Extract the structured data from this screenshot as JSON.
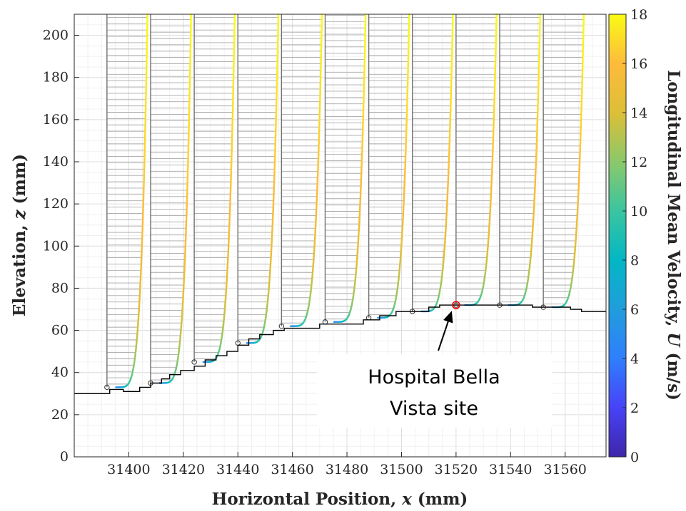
{
  "chart_data": {
    "type": "line",
    "xlabel_main": "Horizontal Position, ",
    "xlabel_var": "x",
    "xlabel_unit": " (mm)",
    "ylabel_main": "Elevation, ",
    "ylabel_var": "z",
    "ylabel_unit": " (mm)",
    "colorbar_label_main": "Longitudinal Mean Velocity, ",
    "colorbar_label_var": "U",
    "colorbar_label_unit": " (m/s)",
    "xlim": [
      31380,
      31575
    ],
    "ylim": [
      0,
      210
    ],
    "colorbar_lim": [
      0,
      18
    ],
    "xticks": [
      31400,
      31420,
      31440,
      31460,
      31480,
      31500,
      31520,
      31540,
      31560
    ],
    "yticks": [
      0,
      20,
      40,
      60,
      80,
      100,
      120,
      140,
      160,
      180,
      200
    ],
    "colorbar_ticks": [
      0,
      2,
      4,
      6,
      8,
      10,
      12,
      14,
      16,
      18
    ],
    "grid": true,
    "colormap": [
      "#3e26a8",
      "#4743f8",
      "#2f7ffc",
      "#209ddc",
      "#03b7c4",
      "#3ac5a0",
      "#8bc86a",
      "#ddbf37",
      "#fdbb3b",
      "#f9fb15"
    ],
    "velocity_scale_mm_per_ms": 0.825,
    "profiles": [
      {
        "x": 31392,
        "z_ground": 33
      },
      {
        "x": 31408,
        "z_ground": 35
      },
      {
        "x": 31424,
        "z_ground": 45
      },
      {
        "x": 31440,
        "z_ground": 54
      },
      {
        "x": 31456,
        "z_ground": 62
      },
      {
        "x": 31472,
        "z_ground": 64
      },
      {
        "x": 31488,
        "z_ground": 66
      },
      {
        "x": 31504,
        "z_ground": 69
      },
      {
        "x": 31520,
        "z_ground": 72
      },
      {
        "x": 31536,
        "z_ground": 72
      },
      {
        "x": 31552,
        "z_ground": 71
      }
    ],
    "terrain": [
      [
        31380,
        30
      ],
      [
        31393,
        30
      ],
      [
        31393,
        32
      ],
      [
        31398,
        32
      ],
      [
        31398,
        31
      ],
      [
        31404,
        31
      ],
      [
        31404,
        33
      ],
      [
        31408,
        33
      ],
      [
        31408,
        35
      ],
      [
        31412,
        35
      ],
      [
        31412,
        37
      ],
      [
        31415,
        37
      ],
      [
        31415,
        39
      ],
      [
        31419,
        39
      ],
      [
        31419,
        41
      ],
      [
        31424,
        41
      ],
      [
        31424,
        43
      ],
      [
        31428,
        43
      ],
      [
        31428,
        46
      ],
      [
        31432,
        46
      ],
      [
        31432,
        48
      ],
      [
        31436,
        48
      ],
      [
        31436,
        50
      ],
      [
        31440,
        50
      ],
      [
        31440,
        53
      ],
      [
        31444,
        53
      ],
      [
        31444,
        56
      ],
      [
        31448,
        56
      ],
      [
        31448,
        58
      ],
      [
        31453,
        58
      ],
      [
        31453,
        60
      ],
      [
        31457,
        60
      ],
      [
        31457,
        61
      ],
      [
        31470,
        61
      ],
      [
        31470,
        63
      ],
      [
        31486,
        63
      ],
      [
        31486,
        65
      ],
      [
        31492,
        65
      ],
      [
        31492,
        67
      ],
      [
        31498,
        67
      ],
      [
        31498,
        69
      ],
      [
        31510,
        69
      ],
      [
        31510,
        71
      ],
      [
        31514,
        71
      ],
      [
        31514,
        72
      ],
      [
        31548,
        72
      ],
      [
        31548,
        71
      ],
      [
        31562,
        71
      ],
      [
        31562,
        70
      ],
      [
        31566,
        70
      ],
      [
        31566,
        69
      ],
      [
        31575,
        69
      ]
    ],
    "highlight": {
      "x": 31520,
      "z": 72,
      "color": "#ff0000"
    },
    "annotation": {
      "line1": "Hospital Bella",
      "line2": "Vista site",
      "arrow_to": {
        "x": 31520,
        "z": 72
      }
    }
  }
}
